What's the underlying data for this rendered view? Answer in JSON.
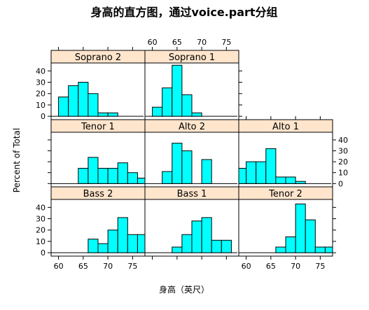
{
  "chart_data": {
    "type": "bar",
    "chart_kind": "histogram",
    "title": "身高的直方图，通过voice.part分组",
    "xlabel": "身高（英尺）",
    "ylabel": "Percent of Total",
    "xlim": [
      58.5,
      77.5
    ],
    "ylim": [
      -3,
      47
    ],
    "xticks": [
      60,
      65,
      70,
      75
    ],
    "yticks": [
      0,
      10,
      20,
      30,
      40
    ],
    "bar_color": "#00ffff",
    "strip_color": "#ffe5cc",
    "layout": {
      "rows": 3,
      "cols": 3
    },
    "panels": [
      {
        "name": "Soprano 2",
        "row": 1,
        "col": 1,
        "bins": [
          [
            60,
            62,
            17
          ],
          [
            62,
            64,
            27
          ],
          [
            64,
            66,
            30
          ],
          [
            66,
            68,
            20
          ],
          [
            68,
            70,
            3
          ],
          [
            70,
            72,
            3
          ]
        ]
      },
      {
        "name": "Soprano 1",
        "row": 1,
        "col": 2,
        "bins": [
          [
            60,
            62,
            8
          ],
          [
            62,
            64,
            25
          ],
          [
            64,
            66,
            45
          ],
          [
            66,
            68,
            19
          ],
          [
            68,
            70,
            3
          ]
        ]
      },
      {
        "name": "Tenor 1",
        "row": 2,
        "col": 1,
        "bins": [
          [
            64,
            66,
            14
          ],
          [
            66,
            68,
            24
          ],
          [
            68,
            70,
            14
          ],
          [
            70,
            72,
            14
          ],
          [
            72,
            74,
            19
          ],
          [
            74,
            76,
            10
          ],
          [
            76,
            78,
            5
          ]
        ]
      },
      {
        "name": "Alto 2",
        "row": 2,
        "col": 2,
        "bins": [
          [
            62,
            64,
            11
          ],
          [
            64,
            66,
            37
          ],
          [
            66,
            68,
            30
          ],
          [
            70,
            72,
            22
          ]
        ]
      },
      {
        "name": "Alto 1",
        "row": 2,
        "col": 3,
        "bins": [
          [
            58,
            60,
            14
          ],
          [
            60,
            62,
            20
          ],
          [
            62,
            64,
            20
          ],
          [
            64,
            66,
            32
          ],
          [
            66,
            68,
            6
          ],
          [
            68,
            70,
            6
          ],
          [
            70,
            72,
            2
          ]
        ]
      },
      {
        "name": "Bass 2",
        "row": 3,
        "col": 1,
        "bins": [
          [
            66,
            68,
            12
          ],
          [
            68,
            70,
            8
          ],
          [
            70,
            72,
            20
          ],
          [
            72,
            74,
            31
          ],
          [
            74,
            76,
            16
          ],
          [
            76,
            78,
            16
          ]
        ]
      },
      {
        "name": "Bass 1",
        "row": 3,
        "col": 2,
        "bins": [
          [
            64,
            66,
            5
          ],
          [
            66,
            68,
            16
          ],
          [
            68,
            70,
            28
          ],
          [
            70,
            72,
            31
          ],
          [
            72,
            74,
            11
          ],
          [
            74,
            76,
            11
          ]
        ]
      },
      {
        "name": "Tenor 2",
        "row": 3,
        "col": 3,
        "bins": [
          [
            66,
            68,
            5
          ],
          [
            68,
            70,
            14
          ],
          [
            70,
            72,
            43
          ],
          [
            72,
            74,
            29
          ],
          [
            74,
            76,
            5
          ],
          [
            76,
            78,
            5
          ]
        ]
      }
    ]
  }
}
